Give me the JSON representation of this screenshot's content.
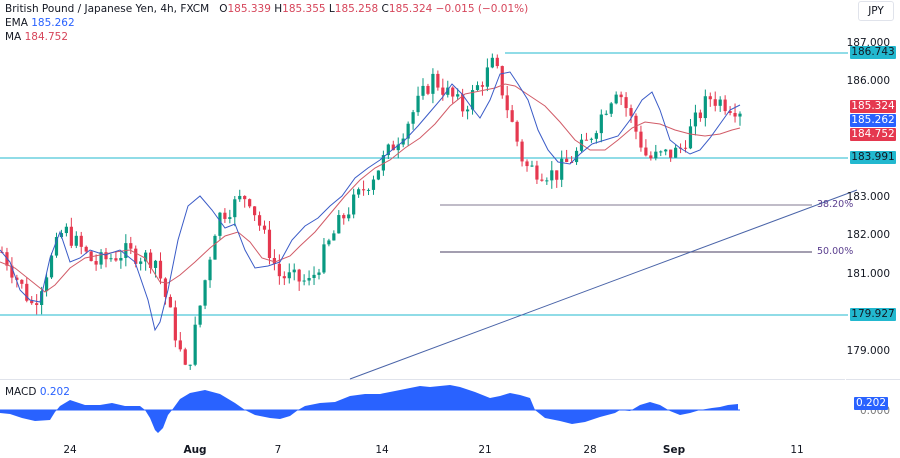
{
  "header": {
    "symbol_title": "British Pound / Japanese Yen, 4h, FXCM",
    "ohlc": {
      "open_label": "O",
      "open": "185.339",
      "high_label": "H",
      "high": "185.355",
      "low_label": "L",
      "low": "185.258",
      "close_label": "C",
      "close": "185.324",
      "change": "−0.015 (−0.01%)"
    },
    "ema": {
      "label": "EMA",
      "value": "185.262"
    },
    "ma": {
      "label": "MA",
      "value": "184.752"
    },
    "currency_button": "JPY"
  },
  "price_axis": {
    "ticks": [
      "187.000",
      "186.000",
      "183.000",
      "182.000",
      "181.000",
      "179.000"
    ],
    "tags": [
      {
        "value": "186.743",
        "color": "#22b8cf",
        "text_color": "#131722",
        "kind": "resistance"
      },
      {
        "value": "185.324",
        "color": "#e5384f",
        "text_color": "#ffffff",
        "kind": "last-price"
      },
      {
        "value": "185.262",
        "color": "#2962ff",
        "text_color": "#ffffff",
        "kind": "ema"
      },
      {
        "value": "184.752",
        "color": "#e5384f",
        "text_color": "#ffffff",
        "kind": "ma"
      },
      {
        "value": "183.991",
        "color": "#22b8cf",
        "text_color": "#131722",
        "kind": "support"
      },
      {
        "value": "179.927",
        "color": "#22b8cf",
        "text_color": "#131722",
        "kind": "support"
      }
    ]
  },
  "fib_levels": [
    {
      "label": "38.20%"
    },
    {
      "label": "50.00%"
    }
  ],
  "macd": {
    "label": "MACD",
    "value": "0.202",
    "axis_tag": "0.202",
    "axis_zero": "0.000",
    "color": "#2962ff"
  },
  "time_axis": {
    "labels": [
      {
        "text": "24",
        "bold": false
      },
      {
        "text": "Aug",
        "bold": true
      },
      {
        "text": "7",
        "bold": false
      },
      {
        "text": "14",
        "bold": false
      },
      {
        "text": "21",
        "bold": false
      },
      {
        "text": "28",
        "bold": false
      },
      {
        "text": "Sep",
        "bold": true
      },
      {
        "text": "11",
        "bold": false
      }
    ]
  },
  "colors": {
    "up": "#089981",
    "down": "#e5384f",
    "ema": "#3a5bc7",
    "ma": "#d15b67",
    "level": "#22b8cf",
    "fib": "#5b3f8f",
    "trendline": "#4a64a8"
  },
  "chart_data": {
    "type": "candlestick",
    "title": "British Pound / Japanese Yen, 4h, FXCM",
    "xlabel": "",
    "ylabel": "JPY",
    "ylim": [
      178.4,
      187.2
    ],
    "grid": false,
    "x_tick_labels": [
      "24",
      "Aug",
      "7",
      "14",
      "21",
      "28",
      "Sep",
      "11"
    ],
    "y_tick_labels": [
      "179.000",
      "181.000",
      "182.000",
      "183.000",
      "186.000",
      "187.000"
    ],
    "last": {
      "open": 185.339,
      "high": 185.355,
      "low": 185.258,
      "close": 185.324,
      "change": -0.015,
      "change_pct": -0.01
    },
    "indicators": {
      "EMA": 185.262,
      "MA": 184.752,
      "MACD": 0.202
    },
    "horizontal_levels": [
      186.743,
      183.991,
      179.927
    ],
    "fibonacci": [
      {
        "level": "38.20%",
        "price": 182.8
      },
      {
        "level": "50.00%",
        "price": 181.6
      }
    ],
    "trendline": {
      "from": {
        "x": "Aug 10",
        "price": 178.4
      },
      "to": {
        "x": "Sep 10",
        "price": 183.1
      }
    },
    "approx_close_path": [
      {
        "date": "Jul 20",
        "close": 181.6
      },
      {
        "date": "Jul 21",
        "close": 180.2
      },
      {
        "date": "Jul 24",
        "close": 182.2
      },
      {
        "date": "Jul 25",
        "close": 181.3
      },
      {
        "date": "Jul 26",
        "close": 181.6
      },
      {
        "date": "Jul 27",
        "close": 181.4
      },
      {
        "date": "Jul 28",
        "close": 178.4
      },
      {
        "date": "Jul 31",
        "close": 182.5
      },
      {
        "date": "Aug 1",
        "close": 183.1
      },
      {
        "date": "Aug 3",
        "close": 181.0
      },
      {
        "date": "Aug 4",
        "close": 180.8
      },
      {
        "date": "Aug 7",
        "close": 182.4
      },
      {
        "date": "Aug 10",
        "close": 183.5
      },
      {
        "date": "Aug 14",
        "close": 184.7
      },
      {
        "date": "Aug 16",
        "close": 186.1
      },
      {
        "date": "Aug 18",
        "close": 185.3
      },
      {
        "date": "Aug 21",
        "close": 186.5
      },
      {
        "date": "Aug 23",
        "close": 183.8
      },
      {
        "date": "Aug 25",
        "close": 183.6
      },
      {
        "date": "Aug 28",
        "close": 184.4
      },
      {
        "date": "Aug 30",
        "close": 185.9
      },
      {
        "date": "Aug 31",
        "close": 184.0
      },
      {
        "date": "Sep 1",
        "close": 184.2
      },
      {
        "date": "Sep 4",
        "close": 185.6
      },
      {
        "date": "Sep 5",
        "close": 185.3
      }
    ],
    "macd_series": {
      "name": "MACD",
      "x": [
        "Jul 20",
        "Jul 24",
        "Jul 27",
        "Jul 28",
        "Aug 1",
        "Aug 4",
        "Aug 7",
        "Aug 10",
        "Aug 14",
        "Aug 18",
        "Aug 21",
        "Aug 24",
        "Aug 28",
        "Aug 30",
        "Sep 1",
        "Sep 5"
      ],
      "values": [
        -0.1,
        0.3,
        0.1,
        -0.7,
        0.6,
        0.1,
        -0.3,
        0.2,
        0.4,
        0.6,
        0.3,
        -0.1,
        0.0,
        0.2,
        -0.1,
        0.202
      ]
    }
  }
}
